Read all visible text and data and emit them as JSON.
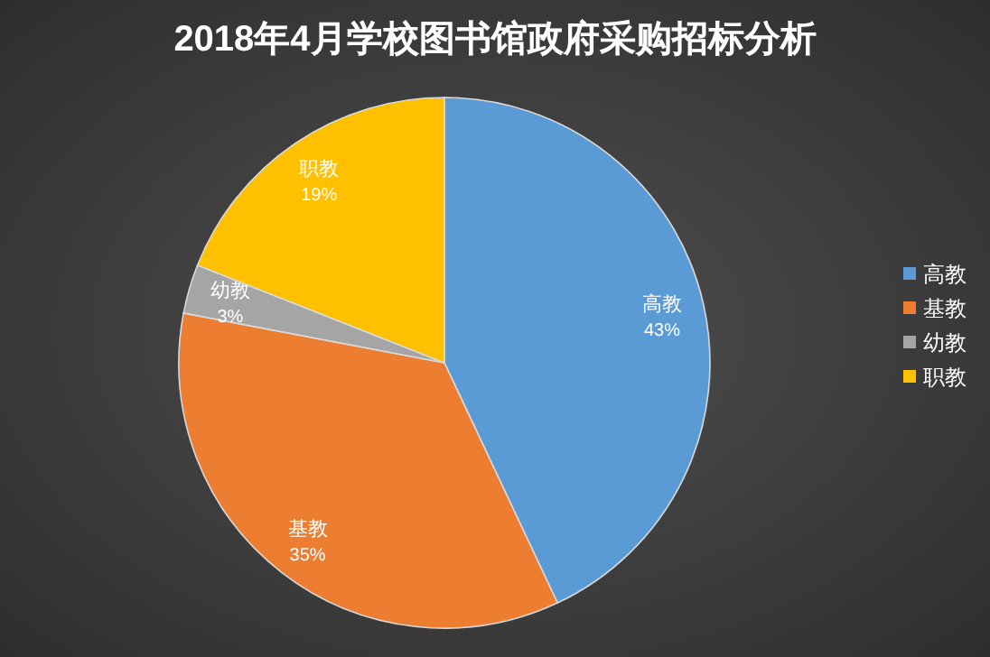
{
  "chart_data": {
    "type": "pie",
    "title": "2018年4月学校图书馆政府采购招标分析",
    "categories": [
      "高教",
      "基教",
      "幼教",
      "职教"
    ],
    "values": [
      43,
      35,
      3,
      19
    ],
    "value_labels": [
      "43%",
      "35%",
      "3%",
      "19%"
    ],
    "colors": [
      "#5b9bd5",
      "#ed7d31",
      "#a5a5a5",
      "#ffc000"
    ],
    "legend": "right"
  }
}
